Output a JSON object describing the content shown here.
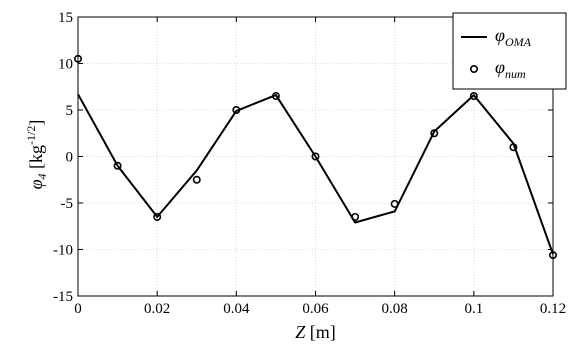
{
  "chart_data": {
    "type": "line",
    "xlabel": {
      "var": "Z",
      "unit": " [m]"
    },
    "ylabel": {
      "var": "φ",
      "sub": "4",
      "unit_pre": " [kg",
      "unit_sup": "-1/2",
      "unit_post": "]"
    },
    "xlim": [
      0,
      0.12
    ],
    "ylim": [
      -15,
      15
    ],
    "xticks": [
      0,
      0.02,
      0.04,
      0.06,
      0.08,
      0.1,
      0.12
    ],
    "xtick_labels": [
      "0",
      "0.02",
      "0.04",
      "0.06",
      "0.08",
      "0.1",
      "0.12"
    ],
    "yticks": [
      -15,
      -10,
      -5,
      0,
      5,
      10,
      15
    ],
    "ytick_labels": [
      "-15",
      "-10",
      "-5",
      "0",
      "5",
      "10",
      "15"
    ],
    "grid": true,
    "legend_position": "top-right",
    "series": [
      {
        "name": {
          "base": "φ",
          "sub": "OMA"
        },
        "style": "line",
        "color": "#000000",
        "x": [
          0,
          0.01,
          0.02,
          0.03,
          0.04,
          0.05,
          0.06,
          0.07,
          0.08,
          0.09,
          0.1,
          0.11,
          0.12
        ],
        "y": [
          6.7,
          -1.0,
          -6.5,
          -1.5,
          4.9,
          6.6,
          0.0,
          -7.1,
          -5.9,
          2.7,
          6.6,
          1.4,
          -10.5
        ]
      },
      {
        "name": {
          "base": "φ",
          "sub": "num"
        },
        "style": "markers",
        "color": "#000000",
        "x": [
          0,
          0.01,
          0.02,
          0.03,
          0.04,
          0.05,
          0.06,
          0.07,
          0.08,
          0.09,
          0.1,
          0.11,
          0.12
        ],
        "y": [
          10.5,
          -1.0,
          -6.5,
          -2.5,
          5.0,
          6.5,
          0.0,
          -6.5,
          -5.1,
          2.5,
          6.5,
          1.0,
          -10.6
        ]
      }
    ]
  }
}
